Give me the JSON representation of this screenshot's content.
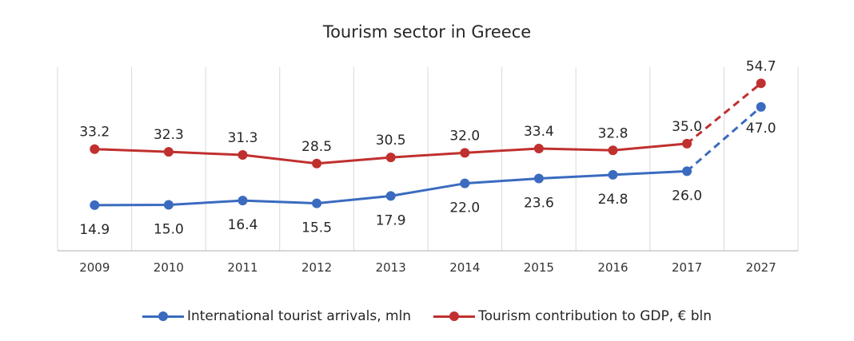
{
  "chart_data": {
    "type": "line",
    "title": "Tourism sector in Greece",
    "categories": [
      "2009",
      "2010",
      "2011",
      "2012",
      "2013",
      "2014",
      "2015",
      "2016",
      "2017",
      "2027"
    ],
    "ylim": [
      0,
      60
    ],
    "grid": "vertical",
    "legend_position": "bottom",
    "dashed_segment": [
      "2017",
      "2027"
    ],
    "series": [
      {
        "name": "International tourist arrivals, mln",
        "color": "#3a6bbf",
        "values": [
          14.9,
          15.0,
          16.4,
          15.5,
          17.9,
          22.0,
          23.6,
          24.8,
          26.0,
          47.0
        ],
        "labels": [
          "14.9",
          "15.0",
          "16.4",
          "15.5",
          "17.9",
          "22.0",
          "23.6",
          "24.8",
          "26.0",
          "47.0"
        ]
      },
      {
        "name": "Tourism contribution to GDP, € bln",
        "color": "#c0302f",
        "values": [
          33.2,
          32.3,
          31.3,
          28.5,
          30.5,
          32.0,
          33.4,
          32.8,
          35.0,
          54.7
        ],
        "labels": [
          "33.2",
          "32.3",
          "31.3",
          "28.5",
          "30.5",
          "32.0",
          "33.4",
          "32.8",
          "35.0",
          "54.7"
        ]
      }
    ]
  }
}
